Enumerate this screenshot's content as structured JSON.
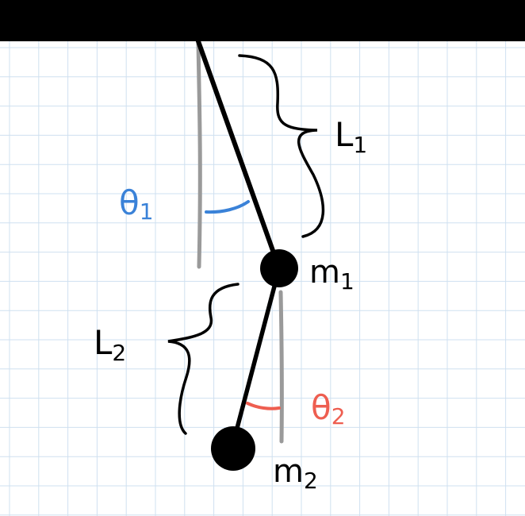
{
  "labels": {
    "L1": "L",
    "L1_sub": "1",
    "L2": "L",
    "L2_sub": "2",
    "m1": "m",
    "m1_sub": "1",
    "m2": "m",
    "m2_sub": "2",
    "theta1": "θ",
    "theta1_sub": "1",
    "theta2": "θ",
    "theta2_sub": "2"
  },
  "colors": {
    "background": "#ffffff",
    "grid": "#cfe0f0",
    "ceiling": "#000000",
    "rod": "#000000",
    "reference_line": "#9a9a9a",
    "theta1": "#3a82d8",
    "theta2": "#ee5e50"
  }
}
